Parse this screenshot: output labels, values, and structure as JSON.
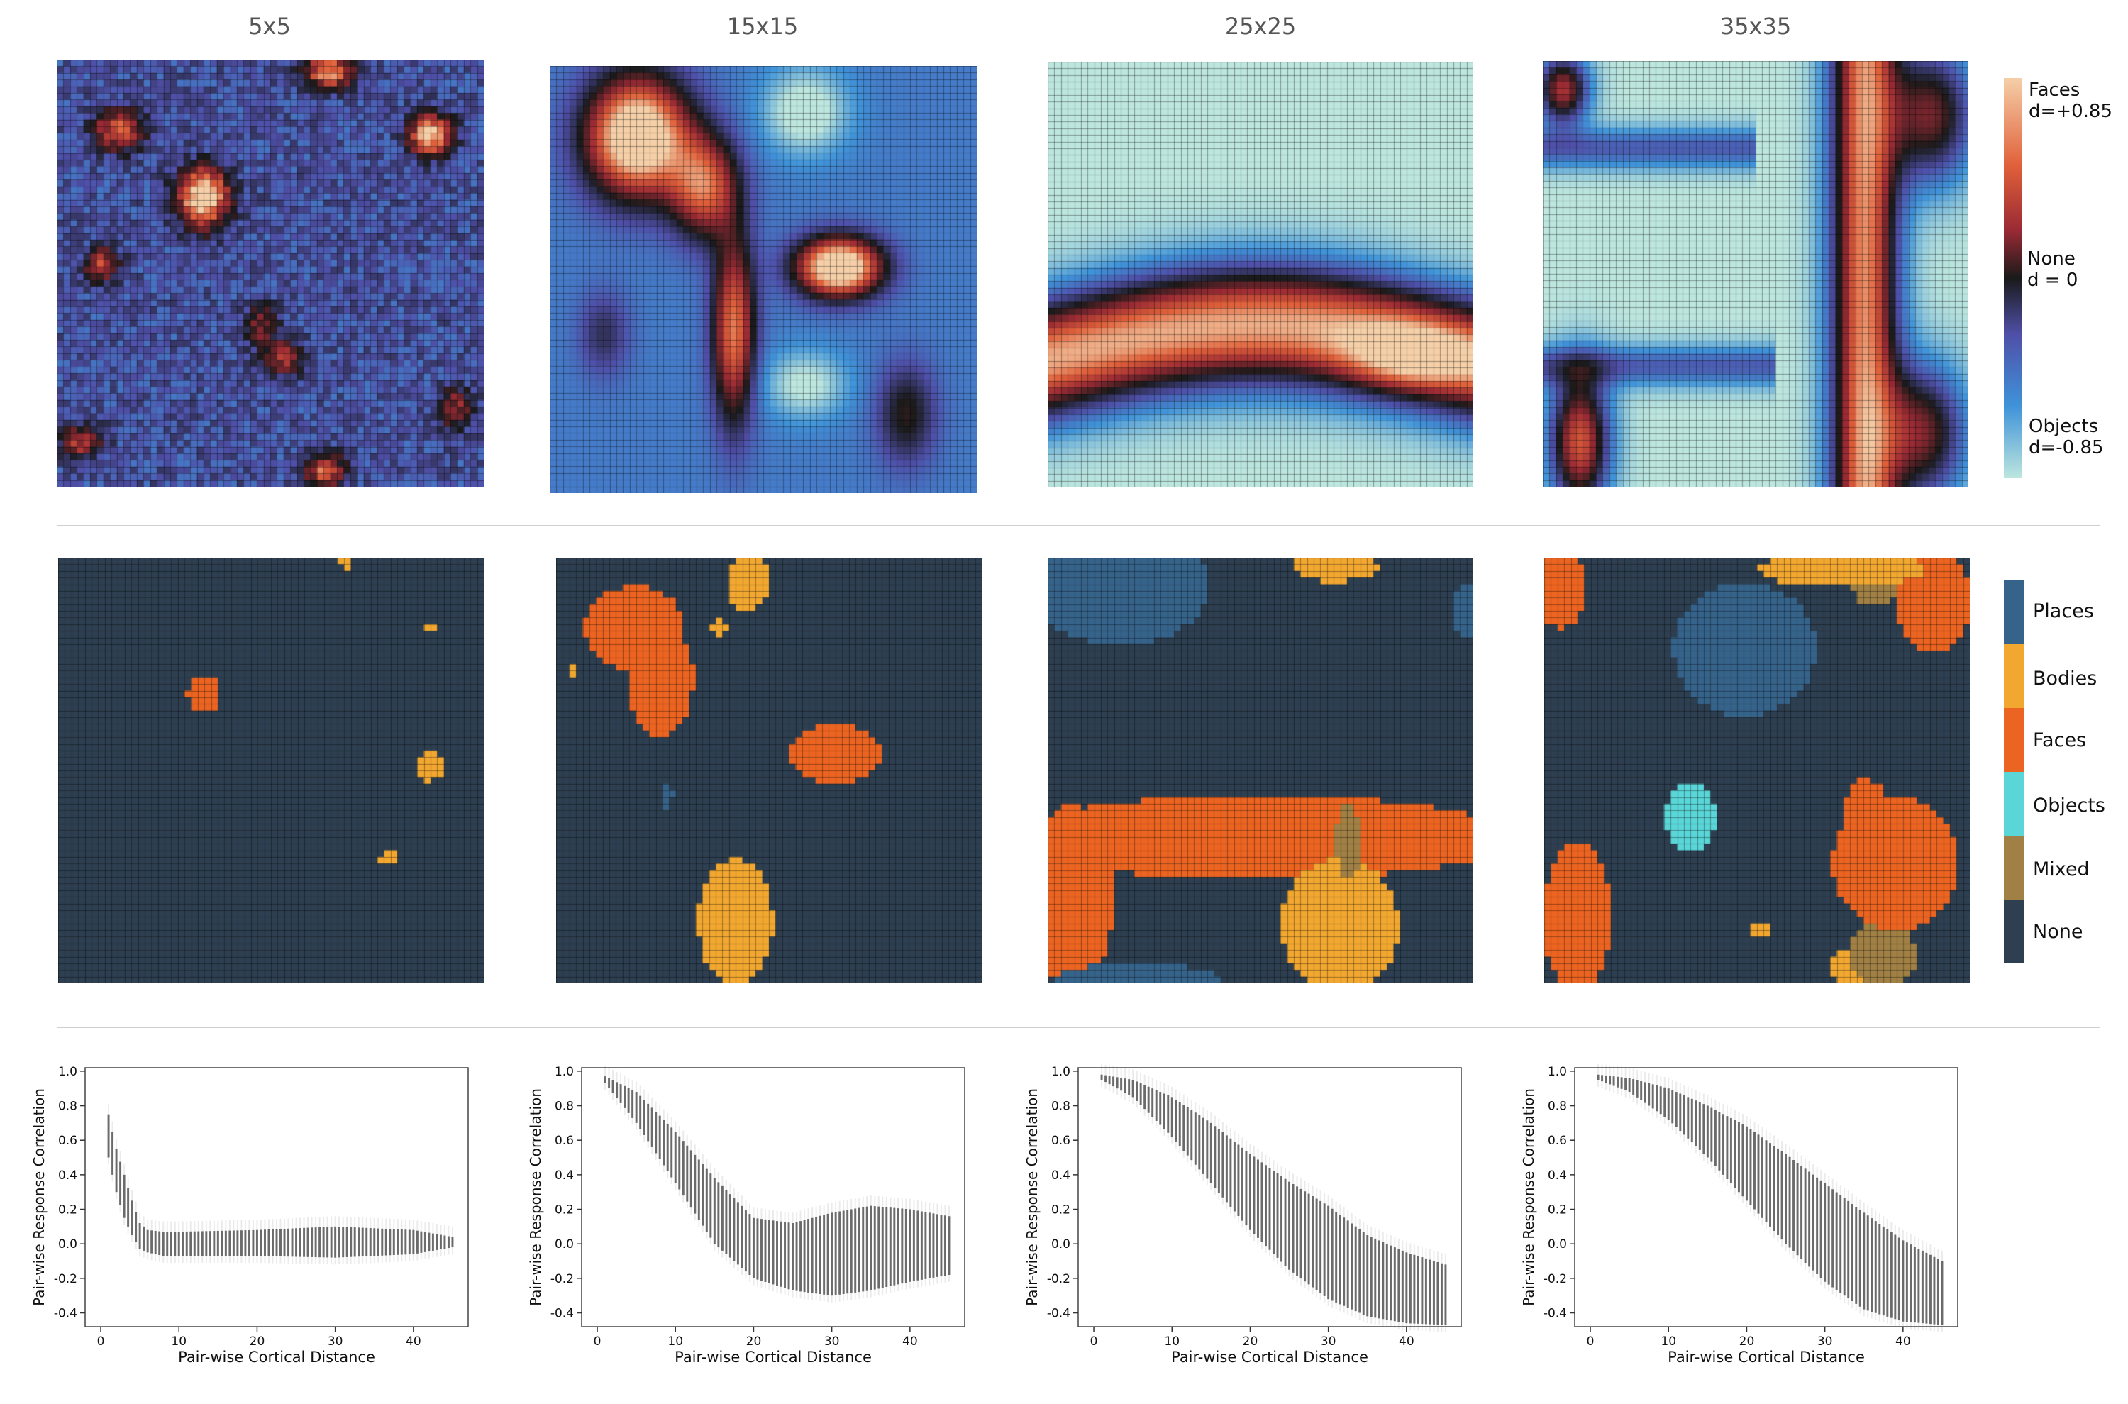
{
  "columns": [
    "5x5",
    "15x15",
    "25x25",
    "35x35"
  ],
  "colorbar_selectivity": {
    "labels": [
      {
        "line1": "Faces",
        "line2": "d=+0.85"
      },
      {
        "line1": "None",
        "line2": "d = 0"
      },
      {
        "line1": "Objects",
        "line2": "d=-0.85"
      }
    ],
    "colors": [
      "#f5cfa8",
      "#e0603a",
      "#9a2a34",
      "#1a1a1a",
      "#4f4fa8",
      "#3f93d9",
      "#bde6de"
    ]
  },
  "colorbar_categories": {
    "items": [
      {
        "label": "Places",
        "color": "#36638a"
      },
      {
        "label": "Bodies",
        "color": "#f2a830"
      },
      {
        "label": "Faces",
        "color": "#ec6421"
      },
      {
        "label": "Objects",
        "color": "#5ad6d8"
      },
      {
        "label": "Mixed",
        "color": "#a08044"
      },
      {
        "label": "None",
        "color": "#2d3f50"
      }
    ]
  },
  "chart_data": [
    {
      "type": "scatter",
      "panel": "5x5",
      "xlabel": "Pair-wise Cortical Distance",
      "ylabel": "Pair-wise Response Correlation",
      "xlim": [
        -2,
        47
      ],
      "ylim": [
        -0.48,
        1.02
      ],
      "xticks": [
        0,
        10,
        20,
        30,
        40
      ],
      "yticks": [
        -0.4,
        -0.2,
        0.0,
        0.2,
        0.4,
        0.6,
        0.8,
        1.0
      ],
      "trend": {
        "x": [
          1,
          2,
          3,
          4,
          5,
          6,
          8,
          10,
          20,
          30,
          40,
          45
        ],
        "y_low": [
          0.5,
          0.3,
          0.15,
          0.05,
          -0.03,
          -0.05,
          -0.07,
          -0.07,
          -0.07,
          -0.08,
          -0.06,
          -0.02
        ],
        "y_high": [
          0.75,
          0.55,
          0.4,
          0.25,
          0.12,
          0.08,
          0.07,
          0.07,
          0.08,
          0.1,
          0.08,
          0.04
        ]
      }
    },
    {
      "type": "scatter",
      "panel": "15x15",
      "xlabel": "Pair-wise Cortical Distance",
      "ylabel": "Pair-wise Response Correlation",
      "xlim": [
        -2,
        47
      ],
      "ylim": [
        -0.48,
        1.02
      ],
      "xticks": [
        0,
        10,
        20,
        30,
        40
      ],
      "yticks": [
        -0.4,
        -0.2,
        0.0,
        0.2,
        0.4,
        0.6,
        0.8,
        1.0
      ],
      "trend": {
        "x": [
          1,
          5,
          10,
          15,
          20,
          25,
          30,
          35,
          40,
          45
        ],
        "y_low": [
          0.93,
          0.7,
          0.35,
          0.0,
          -0.2,
          -0.27,
          -0.3,
          -0.27,
          -0.22,
          -0.18
        ],
        "y_high": [
          0.97,
          0.88,
          0.65,
          0.38,
          0.15,
          0.12,
          0.18,
          0.22,
          0.2,
          0.16
        ]
      }
    },
    {
      "type": "scatter",
      "panel": "25x25",
      "xlabel": "Pair-wise Cortical Distance",
      "ylabel": "Pair-wise Response Correlation",
      "xlim": [
        -2,
        47
      ],
      "ylim": [
        -0.48,
        1.02
      ],
      "xticks": [
        0,
        10,
        20,
        30,
        40
      ],
      "yticks": [
        -0.4,
        -0.2,
        0.0,
        0.2,
        0.4,
        0.6,
        0.8,
        1.0
      ],
      "trend": {
        "x": [
          1,
          5,
          10,
          15,
          20,
          25,
          30,
          35,
          40,
          45
        ],
        "y_low": [
          0.95,
          0.85,
          0.62,
          0.35,
          0.08,
          -0.15,
          -0.32,
          -0.42,
          -0.46,
          -0.47
        ],
        "y_high": [
          0.98,
          0.95,
          0.85,
          0.7,
          0.52,
          0.36,
          0.22,
          0.05,
          -0.05,
          -0.12
        ]
      }
    },
    {
      "type": "scatter",
      "panel": "35x35",
      "xlabel": "Pair-wise Cortical Distance",
      "ylabel": "Pair-wise Response Correlation",
      "xlim": [
        -2,
        47
      ],
      "ylim": [
        -0.48,
        1.02
      ],
      "xticks": [
        0,
        10,
        20,
        30,
        40
      ],
      "yticks": [
        -0.4,
        -0.2,
        0.0,
        0.2,
        0.4,
        0.6,
        0.8,
        1.0
      ],
      "trend": {
        "x": [
          1,
          5,
          10,
          15,
          20,
          25,
          30,
          35,
          40,
          45
        ],
        "y_low": [
          0.95,
          0.88,
          0.72,
          0.5,
          0.25,
          0.0,
          -0.22,
          -0.38,
          -0.45,
          -0.47
        ],
        "y_high": [
          0.98,
          0.96,
          0.9,
          0.8,
          0.68,
          0.52,
          0.35,
          0.18,
          0.02,
          -0.1
        ]
      }
    }
  ]
}
